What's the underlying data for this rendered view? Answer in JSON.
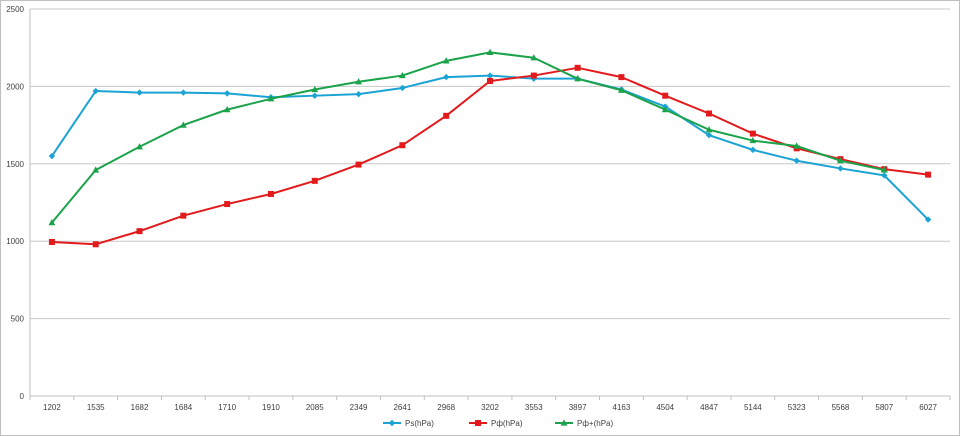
{
  "chart_data": {
    "type": "line",
    "title": "",
    "xlabel": "",
    "ylabel": "",
    "categories": [
      "1202",
      "1535",
      "1682",
      "1684",
      "1710",
      "1910",
      "2085",
      "2349",
      "2641",
      "2968",
      "3202",
      "3553",
      "3897",
      "4163",
      "4504",
      "4847",
      "5144",
      "5323",
      "5568",
      "5807",
      "6027"
    ],
    "ylim": [
      0,
      2500
    ],
    "yticks": [
      0,
      500,
      1000,
      1500,
      2000,
      2500
    ],
    "grid": true,
    "legend_position": "bottom",
    "series": [
      {
        "name": "Ps(hPa)",
        "color": "#1aa3d4",
        "marker": "diamond",
        "values": [
          1550,
          1970,
          1960,
          1960,
          1955,
          1930,
          1940,
          1950,
          1990,
          2060,
          2070,
          2050,
          2050,
          1980,
          1870,
          1685,
          1590,
          1520,
          1470,
          1425,
          1140
        ]
      },
      {
        "name": "Pф(hPa)",
        "color": "#e31a1c",
        "marker": "square",
        "values": [
          995,
          980,
          1065,
          1165,
          1240,
          1305,
          1390,
          1495,
          1620,
          1810,
          2035,
          2070,
          2120,
          2060,
          1940,
          1825,
          1695,
          1600,
          1530,
          1465,
          1430
        ]
      },
      {
        "name": "Pф+(hPa)",
        "color": "#1aa34a",
        "marker": "triangle",
        "values": [
          1120,
          1460,
          1610,
          1750,
          1850,
          1920,
          1980,
          2030,
          2070,
          2165,
          2220,
          2185,
          2050,
          1975,
          1850,
          1720,
          1650,
          1615,
          1520,
          1460,
          null
        ]
      }
    ]
  }
}
